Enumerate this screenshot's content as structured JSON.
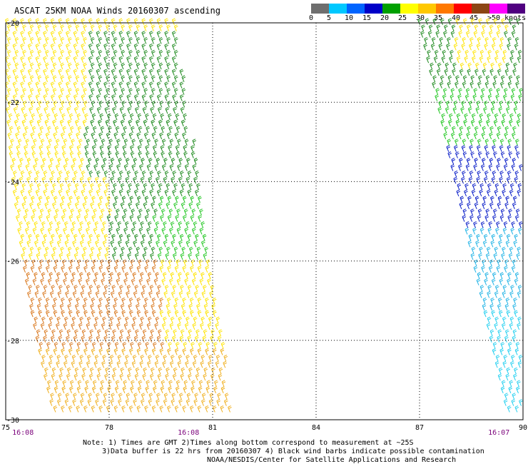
{
  "title": "ASCAT 25KM NOAA Winds 20160307 ascending",
  "legend": {
    "labels": [
      "0",
      "5",
      "10",
      "15",
      "20",
      "25",
      "30",
      "35",
      "40",
      "45",
      ">50 knots"
    ],
    "colors": [
      "#6e6e6e",
      "#00c8ff",
      "#0064ff",
      "#0000c8",
      "#00a000",
      "#ffff00",
      "#ffc800",
      "#ff7800",
      "#ff0000",
      "#8b4513",
      "#ff00ff",
      "#500080"
    ]
  },
  "map": {
    "x_ticks": [
      "75",
      "78",
      "81",
      "84",
      "87",
      "90"
    ],
    "y_ticks": [
      "-20",
      "-22",
      "-24",
      "-26",
      "-28",
      "-30"
    ],
    "lon_range": [
      75,
      90
    ],
    "lat_range": [
      -30,
      -20
    ],
    "grid": true,
    "times": [
      {
        "label": "16:08",
        "lon": 75.5
      },
      {
        "label": "16:08",
        "lon": 80.3
      },
      {
        "label": "16:07",
        "lon": 89.3
      }
    ]
  },
  "notes": {
    "line1": "Note: 1) Times are GMT 2)Times along bottom correspond to measurement at ~25S",
    "line2": "3)Data buffer is 22 hrs from 20160307 4) Black wind barbs indicate possible contamination",
    "line3": "NOAA/NESDIS/Center for Satellite Applications and Research"
  }
}
